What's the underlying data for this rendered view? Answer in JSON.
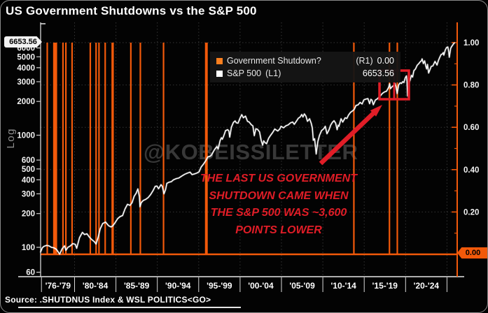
{
  "title": "US Government Shutdowns vs the S&P 500",
  "watermark": "@KOBEISSILETTER",
  "source": "Source: .SHUTDNUS Index & WSL POLITICS<GO>",
  "legend": {
    "shutdown_label": "Government Shutdown?",
    "shutdown_axis": "(R1)",
    "shutdown_value": "0.00",
    "spx_label": "S&P 500",
    "spx_axis": "(L1)",
    "spx_value": "6653.56"
  },
  "badges": {
    "spx_last": "6653.56",
    "shutdown_last": "0.00"
  },
  "left_axis_label": "Log",
  "annotation": {
    "lines": [
      "THE LAST US GOVERNMENT",
      "SHUTDOWN CAME WHEN",
      "THE S&P 500 WAS ~3,600",
      "POINTS LOWER"
    ]
  },
  "colors": {
    "orange": "#f2590a",
    "orange_swatch": "#fb7f1f",
    "white_line": "#ffffff",
    "red": "#e11d27",
    "grid": "#343434",
    "axis_white": "#e8e8e8",
    "tick_text": "#f2f2f2"
  },
  "chart_data": {
    "type": "line",
    "title": "US Government Shutdowns vs the S&P 500",
    "x_axis": {
      "labels": [
        "'76-'79",
        "'80-'84",
        "'85-'89",
        "'90-'94",
        "'95-'99",
        "'00-'04",
        "'05-'09",
        "'10-'14",
        "'15-'19",
        "'20-'24"
      ],
      "blocks": [
        [
          1976,
          1980
        ],
        [
          1980,
          1985
        ],
        [
          1985,
          1990
        ],
        [
          1990,
          1995
        ],
        [
          1995,
          2000
        ],
        [
          2000,
          2005
        ],
        [
          2005,
          2010
        ],
        [
          2010,
          2015
        ],
        [
          2015,
          2020
        ],
        [
          2020,
          2025
        ]
      ],
      "gridline_years": [
        1980,
        1985,
        1990,
        1995,
        2000,
        2005,
        2010,
        2015,
        2020,
        2025
      ],
      "range": [
        1975.9,
        2025.95
      ]
    },
    "left_axis": {
      "scale": "log",
      "label": "Log",
      "ticks": [
        6000,
        5000,
        4000,
        3000,
        2000,
        1000,
        600,
        500,
        400,
        300,
        200,
        100,
        60
      ],
      "last_value": 6653.56
    },
    "right_axis": {
      "major_ticks": [
        [
          1.0,
          "1.00"
        ],
        [
          0.8,
          "0.80"
        ],
        [
          0.6,
          "0.60"
        ],
        [
          0.4,
          "0.40"
        ],
        [
          0.2,
          "0.20"
        ]
      ],
      "minor_ticks": [
        0.1,
        0.3,
        0.5,
        0.7,
        0.9
      ],
      "badge": [
        0.0,
        "0.00"
      ],
      "range": [
        0,
        1
      ]
    },
    "series": [
      {
        "name": "S&P 500",
        "axis": "L1",
        "color": "#ffffff",
        "last": 6653.56,
        "points": [
          [
            1975.9,
            91
          ],
          [
            1976.1,
            99
          ],
          [
            1976.3,
            102
          ],
          [
            1976.6,
            104
          ],
          [
            1976.9,
            103
          ],
          [
            1977.2,
            100
          ],
          [
            1977.5,
            99
          ],
          [
            1977.8,
            96
          ],
          [
            1978.2,
            87
          ],
          [
            1978.5,
            97
          ],
          [
            1978.8,
            103
          ],
          [
            1978.95,
            94
          ],
          [
            1979.2,
            100
          ],
          [
            1979.5,
            103
          ],
          [
            1979.8,
            108
          ],
          [
            1980.1,
            106
          ],
          [
            1980.25,
            98
          ],
          [
            1980.6,
            122
          ],
          [
            1980.95,
            136
          ],
          [
            1981.2,
            130
          ],
          [
            1981.5,
            132
          ],
          [
            1981.8,
            123
          ],
          [
            1982.1,
            117
          ],
          [
            1982.4,
            112
          ],
          [
            1982.6,
            107
          ],
          [
            1982.85,
            123
          ],
          [
            1983.1,
            146
          ],
          [
            1983.4,
            163
          ],
          [
            1983.75,
            168
          ],
          [
            1984.1,
            156
          ],
          [
            1984.4,
            152
          ],
          [
            1984.6,
            155
          ],
          [
            1984.9,
            166
          ],
          [
            1985.2,
            180
          ],
          [
            1985.5,
            188
          ],
          [
            1985.8,
            192
          ],
          [
            1986.1,
            220
          ],
          [
            1986.4,
            242
          ],
          [
            1986.7,
            237
          ],
          [
            1986.95,
            250
          ],
          [
            1987.2,
            285
          ],
          [
            1987.45,
            305
          ],
          [
            1987.65,
            332
          ],
          [
            1987.77,
            300
          ],
          [
            1987.83,
            283
          ],
          [
            1987.9,
            230
          ],
          [
            1988.05,
            250
          ],
          [
            1988.3,
            262
          ],
          [
            1988.6,
            268
          ],
          [
            1988.9,
            278
          ],
          [
            1989.2,
            296
          ],
          [
            1989.5,
            322
          ],
          [
            1989.75,
            350
          ],
          [
            1989.95,
            352
          ],
          [
            1990.15,
            333
          ],
          [
            1990.45,
            362
          ],
          [
            1990.6,
            350
          ],
          [
            1990.8,
            300
          ],
          [
            1991.0,
            328
          ],
          [
            1991.15,
            372
          ],
          [
            1991.4,
            380
          ],
          [
            1991.7,
            385
          ],
          [
            1991.95,
            400
          ],
          [
            1992.3,
            410
          ],
          [
            1992.6,
            415
          ],
          [
            1992.95,
            432
          ],
          [
            1993.3,
            448
          ],
          [
            1993.6,
            458
          ],
          [
            1993.95,
            468
          ],
          [
            1994.2,
            445
          ],
          [
            1994.5,
            452
          ],
          [
            1994.8,
            460
          ],
          [
            1995.05,
            472
          ],
          [
            1995.3,
            520
          ],
          [
            1995.6,
            555
          ],
          [
            1995.9,
            600
          ],
          [
            1996.1,
            640
          ],
          [
            1996.4,
            650
          ],
          [
            1996.55,
            665
          ],
          [
            1996.8,
            720
          ],
          [
            1997.0,
            760
          ],
          [
            1997.2,
            790
          ],
          [
            1997.35,
            755
          ],
          [
            1997.6,
            900
          ],
          [
            1997.75,
            950
          ],
          [
            1997.85,
            920
          ],
          [
            1998.0,
            975
          ],
          [
            1998.25,
            1100
          ],
          [
            1998.5,
            1120
          ],
          [
            1998.65,
            1090
          ],
          [
            1998.75,
            960
          ],
          [
            1998.95,
            1180
          ],
          [
            1999.2,
            1300
          ],
          [
            1999.4,
            1340
          ],
          [
            1999.55,
            1290
          ],
          [
            1999.75,
            1280
          ],
          [
            2000.0,
            1420
          ],
          [
            2000.2,
            1525
          ],
          [
            2000.4,
            1430
          ],
          [
            2000.65,
            1480
          ],
          [
            2000.9,
            1330
          ],
          [
            2001.1,
            1310
          ],
          [
            2001.35,
            1240
          ],
          [
            2001.55,
            1210
          ],
          [
            2001.72,
            990
          ],
          [
            2001.9,
            1140
          ],
          [
            2002.1,
            1130
          ],
          [
            2002.35,
            1070
          ],
          [
            2002.55,
            900
          ],
          [
            2002.72,
            815
          ],
          [
            2002.85,
            890
          ],
          [
            2003.0,
            860
          ],
          [
            2003.2,
            840
          ],
          [
            2003.45,
            940
          ],
          [
            2003.7,
            1000
          ],
          [
            2003.95,
            1060
          ],
          [
            2004.2,
            1135
          ],
          [
            2004.55,
            1090
          ],
          [
            2004.8,
            1135
          ],
          [
            2004.95,
            1200
          ],
          [
            2005.25,
            1165
          ],
          [
            2005.55,
            1215
          ],
          [
            2005.8,
            1235
          ],
          [
            2006.1,
            1290
          ],
          [
            2006.35,
            1310
          ],
          [
            2006.55,
            1250
          ],
          [
            2006.8,
            1330
          ],
          [
            2007.05,
            1420
          ],
          [
            2007.25,
            1450
          ],
          [
            2007.45,
            1530
          ],
          [
            2007.6,
            1455
          ],
          [
            2007.77,
            1550
          ],
          [
            2007.95,
            1480
          ],
          [
            2008.15,
            1330
          ],
          [
            2008.4,
            1400
          ],
          [
            2008.6,
            1270
          ],
          [
            2008.73,
            1160
          ],
          [
            2008.85,
            900
          ],
          [
            2009.0,
            930
          ],
          [
            2009.1,
            800
          ],
          [
            2009.2,
            680
          ],
          [
            2009.4,
            880
          ],
          [
            2009.6,
            1000
          ],
          [
            2009.85,
            1100
          ],
          [
            2010.1,
            1140
          ],
          [
            2010.3,
            1200
          ],
          [
            2010.5,
            1030
          ],
          [
            2010.75,
            1120
          ],
          [
            2010.95,
            1230
          ],
          [
            2011.15,
            1300
          ],
          [
            2011.35,
            1345
          ],
          [
            2011.55,
            1280
          ],
          [
            2011.73,
            1120
          ],
          [
            2011.85,
            1230
          ],
          [
            2011.95,
            1200
          ],
          [
            2012.2,
            1400
          ],
          [
            2012.4,
            1310
          ],
          [
            2012.7,
            1430
          ],
          [
            2012.9,
            1410
          ],
          [
            2013.1,
            1510
          ],
          [
            2013.35,
            1600
          ],
          [
            2013.6,
            1650
          ],
          [
            2013.8,
            1700
          ],
          [
            2014.0,
            1840
          ],
          [
            2014.25,
            1865
          ],
          [
            2014.5,
            1960
          ],
          [
            2014.75,
            1900
          ],
          [
            2014.95,
            2060
          ],
          [
            2015.2,
            2100
          ],
          [
            2015.45,
            2120
          ],
          [
            2015.65,
            1910
          ],
          [
            2015.8,
            2090
          ],
          [
            2015.95,
            2050
          ],
          [
            2016.1,
            1870
          ],
          [
            2016.35,
            2060
          ],
          [
            2016.55,
            2100
          ],
          [
            2016.75,
            2170
          ],
          [
            2016.95,
            2240
          ],
          [
            2017.2,
            2360
          ],
          [
            2017.45,
            2430
          ],
          [
            2017.7,
            2470
          ],
          [
            2017.95,
            2670
          ],
          [
            2018.07,
            2870
          ],
          [
            2018.17,
            2600
          ],
          [
            2018.35,
            2700
          ],
          [
            2018.55,
            2780
          ],
          [
            2018.73,
            2900
          ],
          [
            2018.85,
            2700
          ],
          [
            2018.98,
            2350
          ],
          [
            2019.15,
            2800
          ],
          [
            2019.35,
            2940
          ],
          [
            2019.5,
            2890
          ],
          [
            2019.65,
            3000
          ],
          [
            2019.8,
            2950
          ],
          [
            2019.95,
            3230
          ],
          [
            2020.1,
            3380
          ],
          [
            2020.18,
            3000
          ],
          [
            2020.24,
            2240
          ],
          [
            2020.4,
            2900
          ],
          [
            2020.55,
            3100
          ],
          [
            2020.7,
            3420
          ],
          [
            2020.85,
            3300
          ],
          [
            2021.0,
            3760
          ],
          [
            2021.2,
            3900
          ],
          [
            2021.4,
            4200
          ],
          [
            2021.6,
            4350
          ],
          [
            2021.75,
            4500
          ],
          [
            2021.9,
            4600
          ],
          [
            2022.0,
            4790
          ],
          [
            2022.15,
            4350
          ],
          [
            2022.3,
            4600
          ],
          [
            2022.45,
            4100
          ],
          [
            2022.55,
            3900
          ],
          [
            2022.65,
            4280
          ],
          [
            2022.78,
            3585
          ],
          [
            2022.95,
            3850
          ],
          [
            2023.1,
            4100
          ],
          [
            2023.3,
            4150
          ],
          [
            2023.55,
            4550
          ],
          [
            2023.8,
            4220
          ],
          [
            2023.95,
            4600
          ],
          [
            2024.1,
            4900
          ],
          [
            2024.3,
            5250
          ],
          [
            2024.45,
            5300
          ],
          [
            2024.55,
            5450
          ],
          [
            2024.62,
            5180
          ],
          [
            2024.8,
            5750
          ],
          [
            2024.95,
            6050
          ],
          [
            2025.1,
            6120
          ],
          [
            2025.2,
            5600
          ],
          [
            2025.28,
            4960
          ],
          [
            2025.45,
            5950
          ],
          [
            2025.55,
            6150
          ],
          [
            2025.65,
            6300
          ],
          [
            2025.78,
            6500
          ],
          [
            2025.9,
            6653.56
          ]
        ]
      },
      {
        "name": "Government Shutdown?",
        "axis": "R1",
        "color": "#f2590a",
        "last": 0.0,
        "baseline": 0.0,
        "spike_value": 1.0,
        "event_years": [
          1976.7,
          1977.5,
          1977.65,
          1977.8,
          1978.6,
          1978.95,
          1979.7,
          1981.9,
          1982.6,
          1982.95,
          1983.7,
          1984.55,
          1984.65,
          1986.8,
          1987.95,
          1990.75,
          1995.85,
          1996.0,
          2013.75,
          2018.05,
          2019.0
        ]
      }
    ],
    "annotations": {
      "arrow": {
        "from": [
          457,
          233
        ],
        "to": [
          545,
          149
        ]
      },
      "box": {
        "x": 541,
        "y": 100,
        "w": 42,
        "h": 41,
        "midline_x": 562
      }
    }
  }
}
